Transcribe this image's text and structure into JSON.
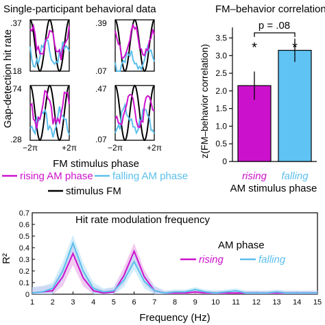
{
  "colors": {
    "rising": "#cc11cc",
    "falling": "#5bbfec",
    "falling_bar": "#5fc3f3",
    "stimulus": "#000000",
    "rising_band": "#e8a8e8",
    "falling_band": "#b5e2f7"
  },
  "panel_a": {
    "title": "Single-participant behavioral data",
    "ylabel": "Gap-detection hit rate",
    "xlabel": "FM stimulus phase",
    "x_ticks": [
      "−2π",
      "+2π"
    ],
    "legend": {
      "rising": "rising AM phase",
      "falling": "falling AM phase",
      "stimulus": "stimulus FM"
    },
    "subplots": [
      {
        "ymax": ".37",
        "ymin": ".18"
      },
      {
        "ymax": ".39",
        "ymin": ".07"
      },
      {
        "ymax": ".74",
        "ymin": ".28"
      },
      {
        "ymax": ".47",
        "ymin": ".07"
      }
    ]
  },
  "panel_b": {
    "title": "FM–behavior correlation",
    "pvalue": "p = .08",
    "sig_marks": [
      "*",
      "*"
    ],
    "xlabel": "AM stimulus phase",
    "ylabel": "z(FM–behavior correlation)"
  },
  "panel_c": {
    "title": "Hit rate modulation frequency",
    "ylabel": "R²",
    "xlabel": "Frequency (Hz)",
    "legend_title": "AM phase"
  },
  "chart_data": [
    {
      "type": "bar",
      "categories": [
        "rising",
        "falling"
      ],
      "values": [
        2.15,
        3.15
      ],
      "errors": [
        0.4,
        0.33
      ],
      "ylabel": "z(FM–behavior correlation)",
      "xlabel": "AM stimulus phase",
      "ylim": [
        0,
        3.8
      ],
      "yticks": [
        "0",
        "0.5",
        "1.0",
        "1.5",
        "2.0",
        "2.5",
        "3.0",
        "3.5"
      ]
    },
    {
      "type": "line",
      "title": "Hit rate modulation frequency",
      "xlabel": "Frequency (Hz)",
      "ylabel": "R²",
      "xlim": [
        1,
        15
      ],
      "ylim": [
        0,
        0.7
      ],
      "xticks": [
        "1",
        "2",
        "3",
        "4",
        "5",
        "6",
        "7",
        "8",
        "9",
        "10",
        "11",
        "12",
        "13",
        "14",
        "15"
      ],
      "yticks": [
        "0",
        "0.1",
        "0.2",
        "0.3",
        "0.4",
        "0.5",
        "0.6",
        "0.7"
      ],
      "x": [
        1,
        1.5,
        2,
        2.5,
        3,
        3.5,
        4,
        4.5,
        5,
        5.5,
        6,
        6.5,
        7,
        7.5,
        8,
        8.5,
        9,
        9.5,
        10,
        10.5,
        11,
        11.5,
        12,
        12.5,
        13,
        13.5,
        14,
        14.5,
        15
      ],
      "series": [
        {
          "name": "rising",
          "values": [
            0.01,
            0.02,
            0.03,
            0.15,
            0.35,
            0.14,
            0.03,
            0.01,
            0.02,
            0.16,
            0.37,
            0.15,
            0.03,
            0.01,
            0.01,
            0.01,
            0.02,
            0.01,
            0.01,
            0.01,
            0.01,
            0.01,
            0.01,
            0.01,
            0.01,
            0.01,
            0.01,
            0.01,
            0.01
          ],
          "band": [
            0.05,
            0.05,
            0.05,
            0.08,
            0.1,
            0.07,
            0.04,
            0.03,
            0.04,
            0.07,
            0.07,
            0.06,
            0.04,
            0.02,
            0.02,
            0.02,
            0.02,
            0.02,
            0.02,
            0.02,
            0.02,
            0.02,
            0.02,
            0.02,
            0.02,
            0.02,
            0.02,
            0.02,
            0.02
          ]
        },
        {
          "name": "falling",
          "values": [
            0.01,
            0.02,
            0.05,
            0.2,
            0.44,
            0.2,
            0.05,
            0.02,
            0.03,
            0.12,
            0.28,
            0.11,
            0.03,
            0.01,
            0.02,
            0.02,
            0.04,
            0.02,
            0.01,
            0.02,
            0.03,
            0.01,
            0.01,
            0.01,
            0.02,
            0.01,
            0.01,
            0.01,
            0.01
          ],
          "band": [
            0.05,
            0.05,
            0.05,
            0.08,
            0.07,
            0.07,
            0.05,
            0.03,
            0.03,
            0.06,
            0.07,
            0.06,
            0.04,
            0.02,
            0.02,
            0.02,
            0.02,
            0.02,
            0.02,
            0.02,
            0.02,
            0.02,
            0.02,
            0.02,
            0.02,
            0.02,
            0.02,
            0.02,
            0.02
          ]
        }
      ]
    }
  ]
}
